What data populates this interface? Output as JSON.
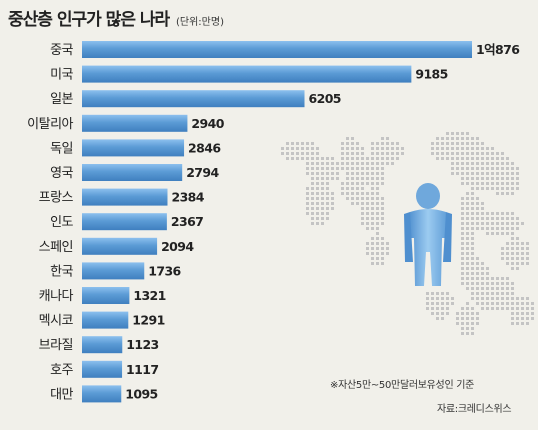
{
  "chart_data": {
    "type": "bar",
    "title": "중산층 인구가 많은 나라",
    "unit": "(단위:만명)",
    "categories": [
      "중국",
      "미국",
      "일본",
      "이탈리아",
      "독일",
      "영국",
      "프랑스",
      "인도",
      "스페인",
      "한국",
      "캐나다",
      "멕시코",
      "브라질",
      "호주",
      "대만"
    ],
    "values": [
      10876,
      9185,
      6205,
      2940,
      2846,
      2794,
      2384,
      2367,
      2094,
      1736,
      1321,
      1291,
      1123,
      1117,
      1095
    ],
    "value_labels": [
      "1억876",
      "9185",
      "6205",
      "2940",
      "2846",
      "2794",
      "2384",
      "2367",
      "2094",
      "1736",
      "1321",
      "1291",
      "1123",
      "1117",
      "1095"
    ],
    "note": "※자산5만~50만달러보유성인 기준",
    "source": "자료:크레디스위스",
    "orientation": "horizontal",
    "grid": false
  },
  "colors": {
    "background": "#f1f0ea",
    "bar": "#5b9bd5",
    "bar_highlight": "#7db3e4",
    "bar_edge": "#3b78b3",
    "map_dots": "#bdbdbd",
    "figure": "#8ec0e8"
  },
  "icons": [
    "world-map-dots",
    "person-figure"
  ]
}
